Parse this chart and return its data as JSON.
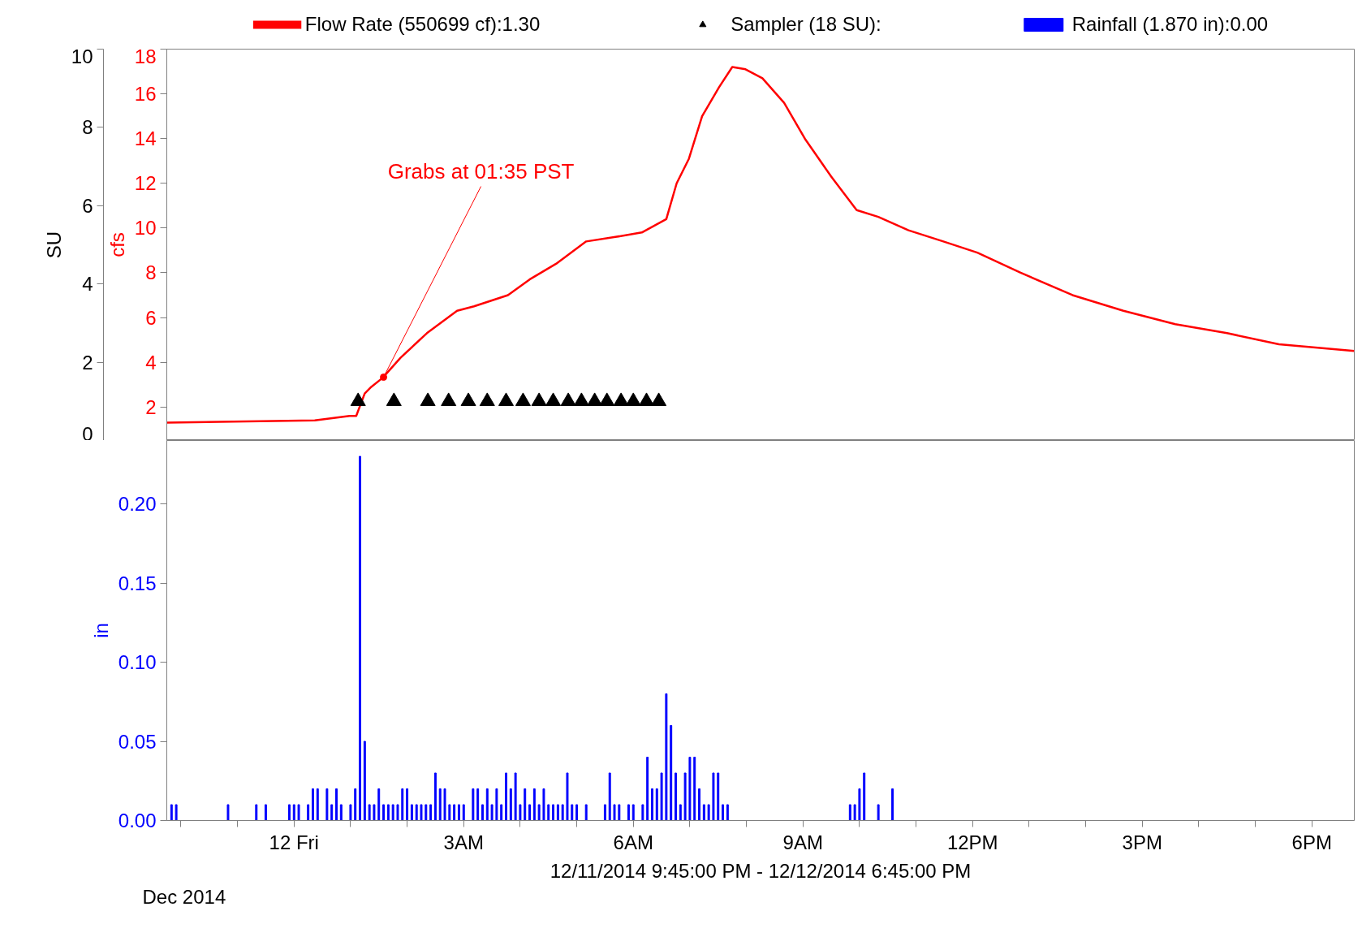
{
  "chart_data": [
    {
      "type": "line",
      "xlim": [
        "2014-12-11T21:45",
        "2014-12-12T18:45"
      ],
      "tick_labels": "y",
      "ylabel": "cfs",
      "ylim": [
        0.5,
        18
      ],
      "yticks": [
        2,
        4,
        6,
        8,
        10,
        12,
        14,
        16,
        18
      ],
      "y2label": "SU",
      "y2lim": [
        0,
        10
      ],
      "y2ticks": [
        0,
        2,
        4,
        6,
        8,
        10
      ],
      "legend": "top",
      "grid": false,
      "annotations": [
        {
          "text": "Grabs at 01:35 PST",
          "x": "2014-12-12T01:35",
          "y": 3.33
        }
      ],
      "series": [
        {
          "type": "line",
          "name": "Flow Rate (550699 cf):1.30",
          "color": "#ff0000",
          "x": [
            "2014-12-11T21:45",
            "2014-12-12T00:22",
            "2014-12-12T00:59",
            "2014-12-12T01:06",
            "2014-12-12T01:15",
            "2014-12-12T01:22",
            "2014-12-12T01:34",
            "2014-12-12T01:53",
            "2014-12-12T02:21",
            "2014-12-12T02:53",
            "2014-12-12T03:11",
            "2014-12-12T03:47",
            "2014-12-12T04:10",
            "2014-12-12T04:38",
            "2014-12-12T05:10",
            "2014-12-12T05:41",
            "2014-12-12T06:09",
            "2014-12-12T06:35",
            "2014-12-12T06:46",
            "2014-12-12T06:59",
            "2014-12-12T07:13",
            "2014-12-12T07:31",
            "2014-12-12T07:45",
            "2014-12-12T07:59",
            "2014-12-12T08:17",
            "2014-12-12T08:40",
            "2014-12-12T09:02",
            "2014-12-12T09:30",
            "2014-12-12T09:57",
            "2014-12-12T10:20",
            "2014-12-12T10:52",
            "2014-12-12T11:29",
            "2014-12-12T12:05",
            "2014-12-12T12:51",
            "2014-12-12T13:46",
            "2014-12-12T14:40",
            "2014-12-12T15:35",
            "2014-12-12T16:30",
            "2014-12-12T17:25",
            "2014-12-12T18:45"
          ],
          "values": [
            1.3,
            1.4,
            1.6,
            1.6,
            2.6,
            2.9,
            3.3,
            4.2,
            5.3,
            6.3,
            6.5,
            7.0,
            7.7,
            8.4,
            9.4,
            9.6,
            9.8,
            10.4,
            12.0,
            13.1,
            15.0,
            16.3,
            17.2,
            17.1,
            16.7,
            15.6,
            14.0,
            12.3,
            10.8,
            10.5,
            9.9,
            9.4,
            8.9,
            8.0,
            7.0,
            6.3,
            5.7,
            5.3,
            4.8,
            4.5
          ]
        },
        {
          "type": "scatter",
          "name": "Sampler (18 SU):",
          "color": "#000000",
          "marker": "triangle",
          "axis": "y2",
          "x": [
            "2014-12-12T01:08",
            "2014-12-12T01:46",
            "2014-12-12T02:22",
            "2014-12-12T02:44",
            "2014-12-12T03:05",
            "2014-12-12T03:25",
            "2014-12-12T03:45",
            "2014-12-12T04:03",
            "2014-12-12T04:20",
            "2014-12-12T04:35",
            "2014-12-12T04:51",
            "2014-12-12T05:05",
            "2014-12-12T05:19",
            "2014-12-12T05:32",
            "2014-12-12T05:47",
            "2014-12-12T06:00",
            "2014-12-12T06:14",
            "2014-12-12T06:27"
          ],
          "values": [
            1,
            1,
            1,
            1,
            1,
            1,
            1,
            1,
            1,
            1,
            1,
            1,
            1,
            1,
            1,
            1,
            1,
            1
          ]
        }
      ]
    },
    {
      "type": "bar",
      "xlim": [
        "2014-12-11T21:45",
        "2014-12-12T18:45"
      ],
      "xticks": [
        {
          "value": "2014-12-11T22:00",
          "label": null
        },
        {
          "value": "2014-12-11T23:00",
          "label": null
        },
        {
          "value": "2014-12-12T00:00",
          "label": "12 Fri"
        },
        {
          "value": "2014-12-12T01:00",
          "label": null
        },
        {
          "value": "2014-12-12T02:00",
          "label": null
        },
        {
          "value": "2014-12-12T03:00",
          "label": "3AM"
        },
        {
          "value": "2014-12-12T04:00",
          "label": null
        },
        {
          "value": "2014-12-12T05:00",
          "label": null
        },
        {
          "value": "2014-12-12T06:00",
          "label": "6AM"
        },
        {
          "value": "2014-12-12T07:00",
          "label": null
        },
        {
          "value": "2014-12-12T08:00",
          "label": null
        },
        {
          "value": "2014-12-12T09:00",
          "label": "9AM"
        },
        {
          "value": "2014-12-12T10:00",
          "label": null
        },
        {
          "value": "2014-12-12T11:00",
          "label": null
        },
        {
          "value": "2014-12-12T12:00",
          "label": "12PM"
        },
        {
          "value": "2014-12-12T13:00",
          "label": null
        },
        {
          "value": "2014-12-12T14:00",
          "label": null
        },
        {
          "value": "2014-12-12T15:00",
          "label": "3PM"
        },
        {
          "value": "2014-12-12T16:00",
          "label": null
        },
        {
          "value": "2014-12-12T17:00",
          "label": null
        },
        {
          "value": "2014-12-12T18:00",
          "label": "6PM"
        }
      ],
      "xlabel": "12/11/2014 9:45:00 PM - 12/12/2014 6:45:00 PM",
      "ylabel": "in",
      "ylim": [
        0,
        0.24
      ],
      "yticks": [
        {
          "value": 0,
          "label": "0.00"
        },
        0.05,
        {
          "value": 0.1,
          "label": "0.10"
        },
        0.15,
        {
          "value": 0.2,
          "label": "0.20"
        }
      ],
      "grid": false,
      "annotations": [
        "Dec 2014"
      ],
      "series": [
        {
          "name": "Rainfall (1.870 in):0.00",
          "color": "#0000ff",
          "x": [
            "2014-12-11T21:50",
            "2014-12-11T21:55",
            "2014-12-11T22:50",
            "2014-12-11T23:20",
            "2014-12-11T23:30",
            "2014-12-11T23:55",
            "2014-12-12T00:00",
            "2014-12-12T00:05",
            "2014-12-12T00:15",
            "2014-12-12T00:20",
            "2014-12-12T00:25",
            "2014-12-12T00:35",
            "2014-12-12T00:40",
            "2014-12-12T00:45",
            "2014-12-12T00:50",
            "2014-12-12T01:00",
            "2014-12-12T01:05",
            "2014-12-12T01:10",
            "2014-12-12T01:15",
            "2014-12-12T01:20",
            "2014-12-12T01:25",
            "2014-12-12T01:30",
            "2014-12-12T01:35",
            "2014-12-12T01:40",
            "2014-12-12T01:45",
            "2014-12-12T01:50",
            "2014-12-12T01:55",
            "2014-12-12T02:00",
            "2014-12-12T02:05",
            "2014-12-12T02:10",
            "2014-12-12T02:15",
            "2014-12-12T02:20",
            "2014-12-12T02:25",
            "2014-12-12T02:30",
            "2014-12-12T02:35",
            "2014-12-12T02:40",
            "2014-12-12T02:45",
            "2014-12-12T02:50",
            "2014-12-12T02:55",
            "2014-12-12T03:00",
            "2014-12-12T03:10",
            "2014-12-12T03:15",
            "2014-12-12T03:20",
            "2014-12-12T03:25",
            "2014-12-12T03:30",
            "2014-12-12T03:35",
            "2014-12-12T03:40",
            "2014-12-12T03:45",
            "2014-12-12T03:50",
            "2014-12-12T03:55",
            "2014-12-12T04:00",
            "2014-12-12T04:05",
            "2014-12-12T04:10",
            "2014-12-12T04:15",
            "2014-12-12T04:20",
            "2014-12-12T04:25",
            "2014-12-12T04:30",
            "2014-12-12T04:35",
            "2014-12-12T04:40",
            "2014-12-12T04:45",
            "2014-12-12T04:50",
            "2014-12-12T04:55",
            "2014-12-12T05:00",
            "2014-12-12T05:10",
            "2014-12-12T05:30",
            "2014-12-12T05:35",
            "2014-12-12T05:40",
            "2014-12-12T05:45",
            "2014-12-12T05:55",
            "2014-12-12T06:00",
            "2014-12-12T06:10",
            "2014-12-12T06:15",
            "2014-12-12T06:20",
            "2014-12-12T06:25",
            "2014-12-12T06:30",
            "2014-12-12T06:35",
            "2014-12-12T06:40",
            "2014-12-12T06:45",
            "2014-12-12T06:50",
            "2014-12-12T06:55",
            "2014-12-12T07:00",
            "2014-12-12T07:05",
            "2014-12-12T07:10",
            "2014-12-12T07:15",
            "2014-12-12T07:20",
            "2014-12-12T07:25",
            "2014-12-12T07:30",
            "2014-12-12T07:35",
            "2014-12-12T07:40",
            "2014-12-12T09:50",
            "2014-12-12T09:55",
            "2014-12-12T10:00",
            "2014-12-12T10:05",
            "2014-12-12T10:20",
            "2014-12-12T10:35"
          ],
          "values": [
            0.01,
            0.01,
            0.01,
            0.01,
            0.01,
            0.01,
            0.01,
            0.01,
            0.01,
            0.02,
            0.02,
            0.02,
            0.01,
            0.02,
            0.01,
            0.01,
            0.02,
            0.23,
            0.05,
            0.01,
            0.01,
            0.02,
            0.01,
            0.01,
            0.01,
            0.01,
            0.02,
            0.02,
            0.01,
            0.01,
            0.01,
            0.01,
            0.01,
            0.03,
            0.02,
            0.02,
            0.01,
            0.01,
            0.01,
            0.01,
            0.02,
            0.02,
            0.01,
            0.02,
            0.01,
            0.02,
            0.01,
            0.03,
            0.02,
            0.03,
            0.01,
            0.02,
            0.01,
            0.02,
            0.01,
            0.02,
            0.01,
            0.01,
            0.01,
            0.01,
            0.03,
            0.01,
            0.01,
            0.01,
            0.01,
            0.03,
            0.01,
            0.01,
            0.01,
            0.01,
            0.01,
            0.04,
            0.02,
            0.02,
            0.03,
            0.08,
            0.06,
            0.03,
            0.01,
            0.03,
            0.04,
            0.04,
            0.02,
            0.01,
            0.01,
            0.03,
            0.03,
            0.01,
            0.01,
            0.01,
            0.01,
            0.02,
            0.03,
            0.01,
            0.02
          ]
        }
      ]
    }
  ]
}
